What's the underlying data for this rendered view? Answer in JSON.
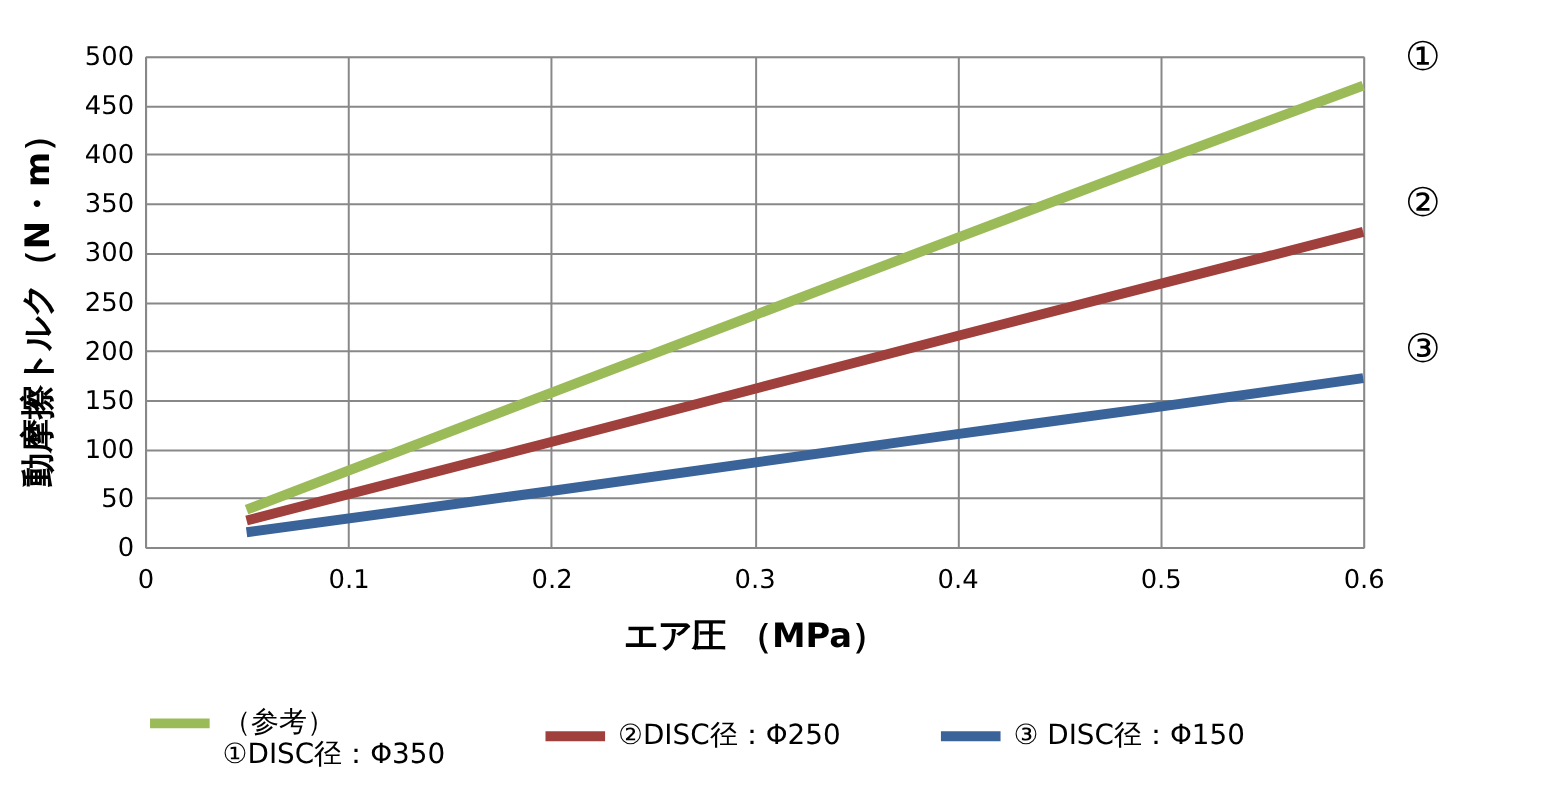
{
  "chart_data": {
    "type": "line",
    "xlabel": "エア圧 （MPa）",
    "ylabel": "動摩擦トルク（N・m）",
    "x": [
      0.05,
      0.2,
      0.3,
      0.4,
      0.5,
      0.6
    ],
    "series": [
      {
        "name": "（参考）\n①DISC径：Φ350",
        "color": "#9bbb59",
        "values": [
          38,
          157,
          236,
          315,
          393,
          470
        ]
      },
      {
        "name": "②DISC径：Φ250",
        "color": "#a0403c",
        "values": [
          27,
          107,
          161,
          215,
          268,
          321
        ]
      },
      {
        "name": "③ DISC径：Φ150",
        "color": "#3a6399",
        "values": [
          15,
          57,
          86,
          115,
          143,
          172
        ]
      }
    ],
    "xlim": [
      0,
      0.6
    ],
    "xticks": [
      0,
      0.1,
      0.2,
      0.3,
      0.4,
      0.5,
      0.6
    ],
    "ylim": [
      0,
      500
    ],
    "yticks": [
      0,
      50,
      100,
      150,
      200,
      250,
      300,
      350,
      400,
      450,
      500
    ],
    "grid": true,
    "legend": "bottom",
    "marker": "none",
    "line_style": "solid",
    "annotations": [
      "①",
      "②",
      "③"
    ]
  }
}
